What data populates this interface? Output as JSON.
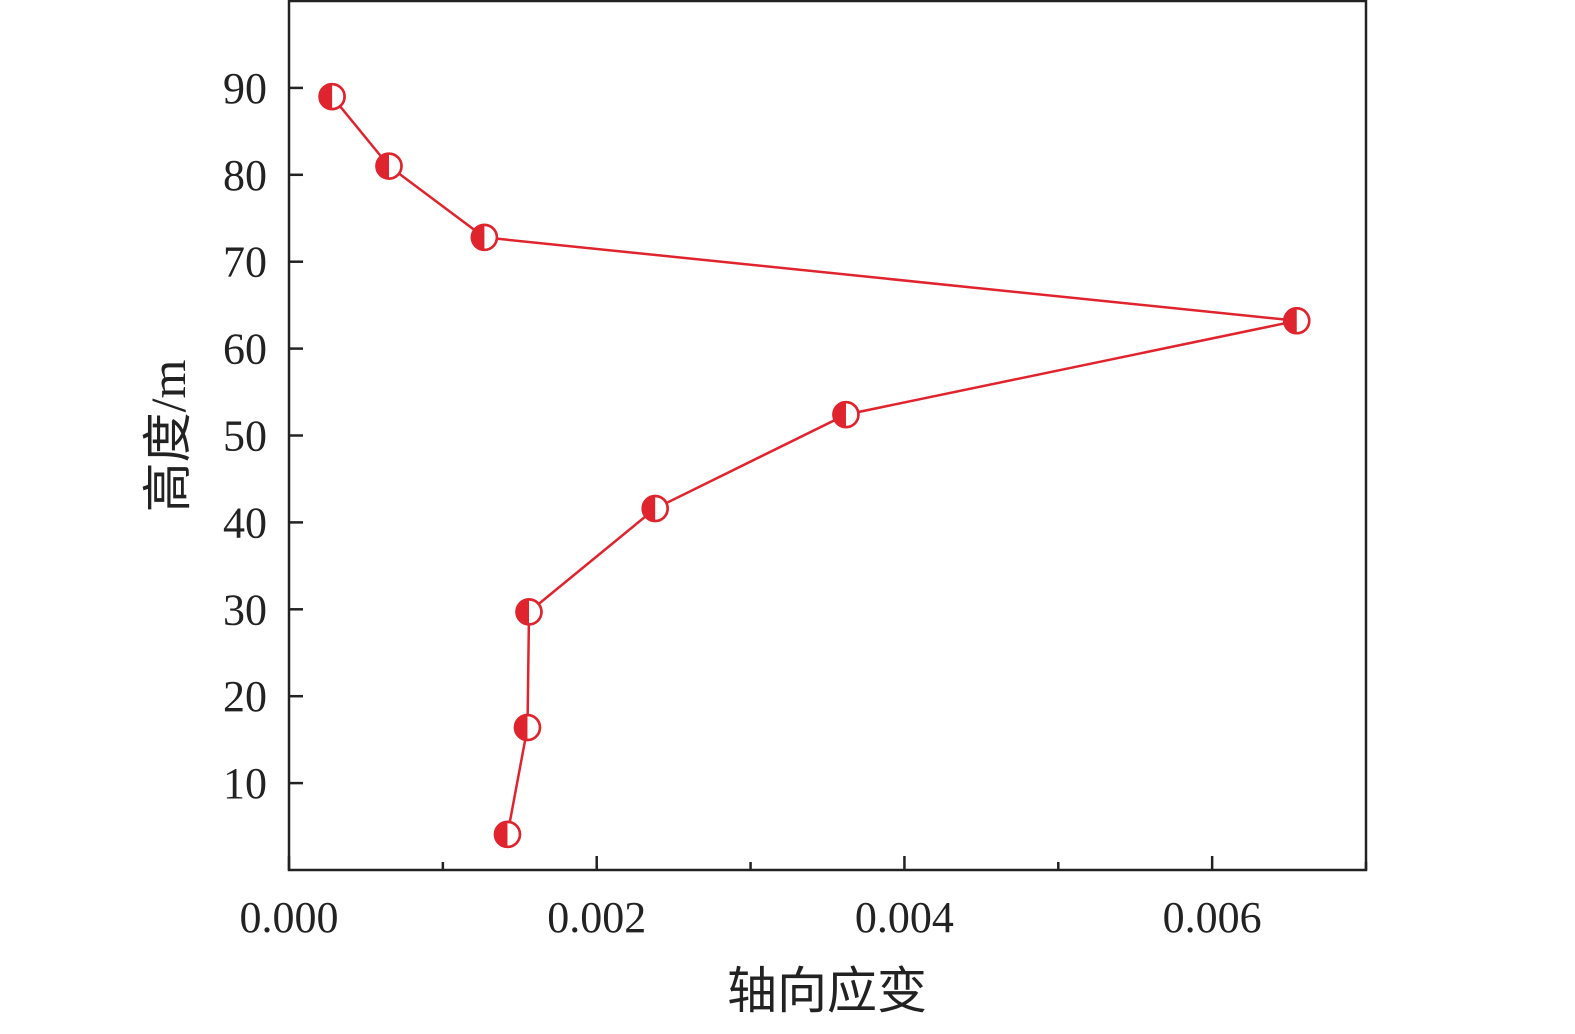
{
  "chart_data": {
    "type": "line",
    "title": "",
    "xlabel": "轴向应变",
    "ylabel": "高度/m",
    "xlim": [
      0.0,
      0.007
    ],
    "ylim": [
      0,
      100
    ],
    "x_ticks": [
      0.0,
      0.002,
      0.004,
      0.006
    ],
    "x_tick_labels": [
      "0.000",
      "0.002",
      "0.004",
      "0.006"
    ],
    "x_minor_ticks": [
      0.001,
      0.003,
      0.005,
      0.007
    ],
    "y_ticks": [
      10,
      20,
      30,
      40,
      50,
      60,
      70,
      80,
      90
    ],
    "y_tick_labels": [
      "10",
      "20",
      "30",
      "40",
      "50",
      "60",
      "70",
      "80",
      "90"
    ],
    "grid": false,
    "legend": "none",
    "series": [
      {
        "color": "#e0242e",
        "marker": "half-filled-circle",
        "points": [
          {
            "x": 0.00028,
            "y": 89.0
          },
          {
            "x": 0.00065,
            "y": 81.0
          },
          {
            "x": 0.00127,
            "y": 72.8
          },
          {
            "x": 0.00655,
            "y": 63.2
          },
          {
            "x": 0.00362,
            "y": 52.4
          },
          {
            "x": 0.00238,
            "y": 41.6
          },
          {
            "x": 0.00156,
            "y": 29.7
          },
          {
            "x": 0.00155,
            "y": 16.4
          },
          {
            "x": 0.00142,
            "y": 4.1
          }
        ]
      }
    ]
  }
}
